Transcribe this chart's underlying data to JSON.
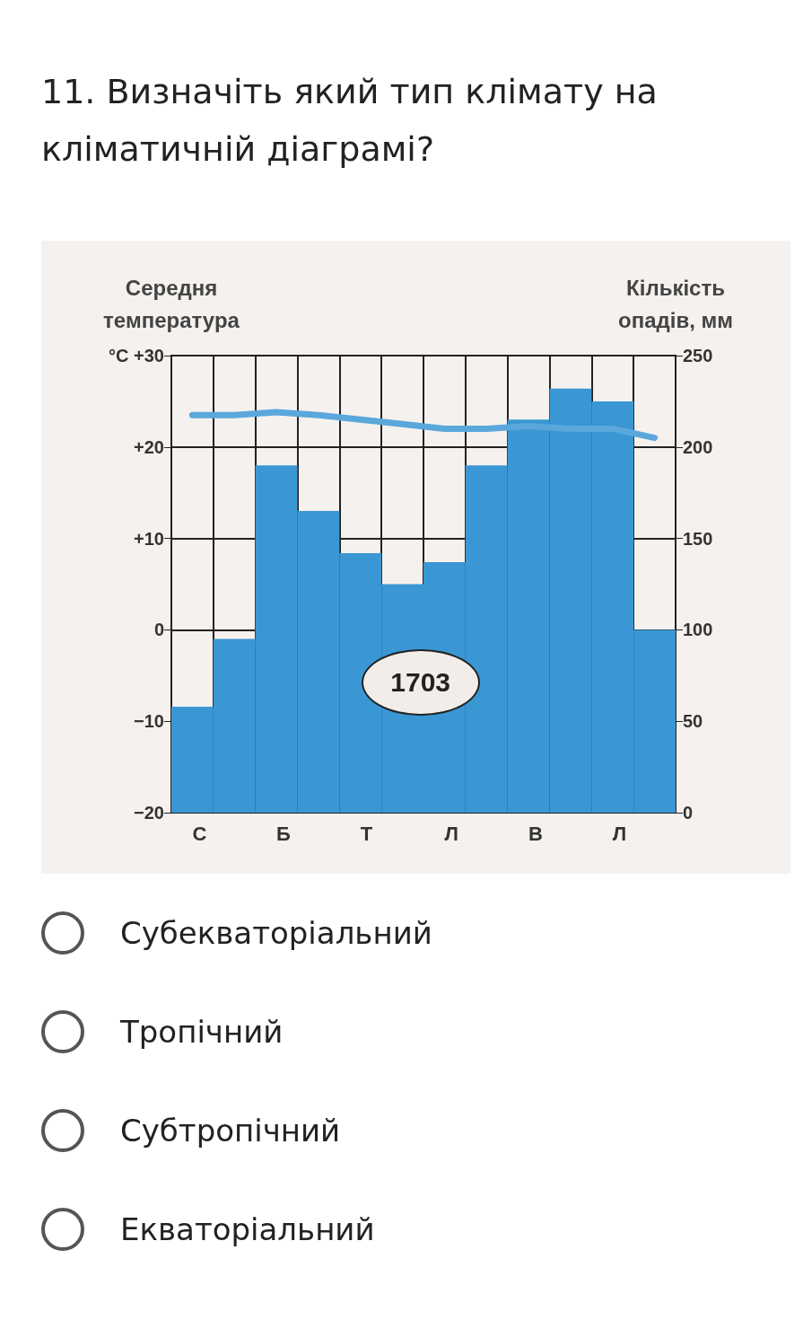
{
  "chart_data": {
    "type": "bar",
    "title": "11. Визначіть який тип клімату на кліматичній діаграмі?",
    "ylabel": "Середня температура",
    "y2label": "Кількість опадів, мм",
    "categories": [
      "С",
      null,
      "Б",
      null,
      "Т",
      null,
      "Л",
      null,
      "В",
      null,
      "Л",
      null
    ],
    "series": [
      {
        "axis": "y2",
        "color": "#3a97d4",
        "values": [
          58,
          95,
          190,
          165,
          142,
          125,
          137,
          190,
          215,
          232,
          225,
          100
        ]
      },
      {
        "type": "line",
        "axis": "y",
        "color": "#5aa7dc",
        "values": [
          23.5,
          23.5,
          23.8,
          23.5,
          23,
          22.5,
          22,
          22,
          22.3,
          22,
          22,
          21
        ]
      }
    ],
    "ylim": [
      -20,
      30
    ],
    "yticks": [
      {
        "value": -20,
        "label": "−20"
      },
      {
        "value": -10,
        "label": "−10"
      },
      0,
      {
        "value": 10,
        "label": "+10"
      },
      {
        "value": 20,
        "label": "+20"
      },
      {
        "value": 30,
        "label": "°C +30"
      }
    ],
    "y2lim": [
      0,
      250
    ],
    "y2ticks": [
      0,
      50,
      100,
      150,
      200,
      250
    ],
    "grid": true,
    "marker": "none",
    "line_style": "solid",
    "annotations": [
      "1703",
      "Субекваторіальний",
      "Тропічний",
      "Субтропічний",
      "Екваторіальний"
    ]
  }
}
